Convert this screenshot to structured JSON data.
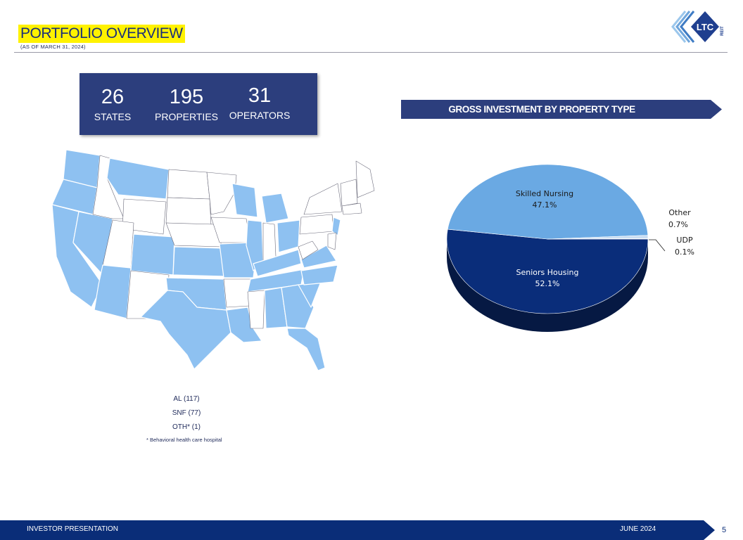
{
  "header": {
    "title": "PORTFOLIO OVERVIEW",
    "subtitle": "(AS OF MARCH 31, 2024)",
    "logo_text": "LTC",
    "logo_subtext": "REIT"
  },
  "stats": [
    {
      "value": "26",
      "label": "STATES"
    },
    {
      "value": "195",
      "label": "PROPERTIES"
    },
    {
      "value": "31",
      "label": "OPERATORS"
    }
  ],
  "map_legend": {
    "items": [
      "AL (117)",
      "SNF (77)",
      "OTH* (1)"
    ],
    "note": "* Behavioral health care hospital"
  },
  "chart_data": {
    "type": "pie",
    "title": "GROSS INVESTMENT BY PROPERTY TYPE",
    "categories": [
      "Seniors Housing",
      "Skilled Nursing",
      "Other",
      "UDP"
    ],
    "values": [
      52.1,
      47.1,
      0.7,
      0.1
    ],
    "value_labels": [
      "52.1%",
      "47.1%",
      "0.7%",
      "0.1%"
    ],
    "colors": [
      "#0a2d7a",
      "#6aa9e3",
      "#c9ddf2",
      "#1e3f8f"
    ]
  },
  "footer": {
    "left": "INVESTOR PRESENTATION",
    "right": "JUNE 2024",
    "page_number": "5"
  },
  "colors": {
    "navy": "#0a2d78",
    "stats_box": "#2c3e7d",
    "highlight": "#fff200",
    "map_fill": "#8ec1f1"
  }
}
